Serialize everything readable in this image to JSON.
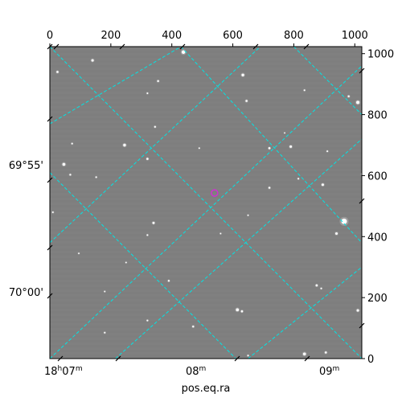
{
  "chart_data": {
    "type": "scatter",
    "title": "",
    "xlabel": "pos.eq.ra",
    "ylabel": "",
    "pixel_axes": {
      "x_range": [
        0,
        1023
      ],
      "y_range": [
        0,
        1023
      ],
      "x_ticks": [
        0,
        200,
        400,
        600,
        800,
        1000
      ],
      "y_ticks": [
        0,
        200,
        400,
        600,
        800,
        1000
      ]
    },
    "world_axes": {
      "ra_tick_labels": [
        {
          "text": "18",
          "sup1": "h",
          "mid": "07",
          "sup2": "m"
        },
        {
          "text": "",
          "sup1": "",
          "mid": "08",
          "sup2": "m"
        },
        {
          "text": "",
          "sup1": "",
          "mid": "09",
          "sup2": "m"
        }
      ],
      "dec_tick_labels": [
        "69°55'",
        "70°00'"
      ]
    },
    "grid": true,
    "grid_color": "#00e5e5",
    "background_color": "#7f7f7f",
    "marker_color": "#cc33cc",
    "target": {
      "x": 540,
      "y": 543
    },
    "grid_lines": [
      {
        "type": "ra",
        "from": [
          0,
          1023
        ],
        "to": [
          240,
          1023
        ]
      },
      {
        "type": "ra",
        "from": [
          0,
          1023
        ],
        "to": [
          150,
          1023
        ]
      },
      {
        "type": "ra",
        "from": [
          0,
          770
        ],
        "to": [
          430,
          1023
        ]
      },
      {
        "type": "ra",
        "from": [
          0,
          380
        ],
        "to": [
          690,
          1023
        ]
      },
      {
        "type": "ra",
        "from": [
          0,
          0
        ],
        "to": [
          1023,
          960
        ]
      },
      {
        "type": "ra",
        "from": [
          215,
          0
        ],
        "to": [
          1023,
          720
        ]
      },
      {
        "type": "ra",
        "from": [
          650,
          0
        ],
        "to": [
          1023,
          300
        ]
      },
      {
        "type": "dec",
        "from": [
          0,
          1023
        ],
        "to": [
          1023,
          0
        ]
      },
      {
        "type": "dec",
        "from": [
          0,
          1023
        ],
        "to": [
          0,
          1023
        ]
      },
      {
        "type": "dec",
        "from": [
          0,
          610
        ],
        "to": [
          610,
          0
        ]
      },
      {
        "type": "dec",
        "from": [
          430,
          1023
        ],
        "to": [
          1023,
          380
        ]
      },
      {
        "type": "dec",
        "from": [
          800,
          1023
        ],
        "to": [
          1023,
          800
        ]
      }
    ],
    "stars": [
      {
        "x": 438,
        "y": 1005,
        "m": 2.2
      },
      {
        "x": 140,
        "y": 978,
        "m": 1.5
      },
      {
        "x": 25,
        "y": 940,
        "m": 1.3
      },
      {
        "x": 633,
        "y": 930,
        "m": 1.7
      },
      {
        "x": 355,
        "y": 910,
        "m": 1.2
      },
      {
        "x": 320,
        "y": 870,
        "m": 1.0
      },
      {
        "x": 645,
        "y": 845,
        "m": 1.3
      },
      {
        "x": 980,
        "y": 860,
        "m": 1.2
      },
      {
        "x": 1010,
        "y": 840,
        "m": 2.0
      },
      {
        "x": 835,
        "y": 880,
        "m": 1.0
      },
      {
        "x": 345,
        "y": 760,
        "m": 1.1
      },
      {
        "x": 245,
        "y": 700,
        "m": 1.7
      },
      {
        "x": 73,
        "y": 705,
        "m": 1.0
      },
      {
        "x": 720,
        "y": 690,
        "m": 1.3
      },
      {
        "x": 790,
        "y": 695,
        "m": 1.5
      },
      {
        "x": 46,
        "y": 637,
        "m": 1.8
      },
      {
        "x": 320,
        "y": 655,
        "m": 1.3
      },
      {
        "x": 910,
        "y": 680,
        "m": 1.0
      },
      {
        "x": 152,
        "y": 595,
        "m": 1.0
      },
      {
        "x": 67,
        "y": 603,
        "m": 1.1
      },
      {
        "x": 490,
        "y": 690,
        "m": 0.9
      },
      {
        "x": 815,
        "y": 590,
        "m": 1.0
      },
      {
        "x": 895,
        "y": 570,
        "m": 1.5
      },
      {
        "x": 720,
        "y": 560,
        "m": 1.2
      },
      {
        "x": 1023,
        "y": 605,
        "m": 1.0
      },
      {
        "x": 965,
        "y": 450,
        "m": 3.5
      },
      {
        "x": 940,
        "y": 410,
        "m": 1.5
      },
      {
        "x": 340,
        "y": 445,
        "m": 1.4
      },
      {
        "x": 650,
        "y": 470,
        "m": 0.9
      },
      {
        "x": 10,
        "y": 480,
        "m": 1.0
      },
      {
        "x": 320,
        "y": 405,
        "m": 1.0
      },
      {
        "x": 390,
        "y": 255,
        "m": 1.1
      },
      {
        "x": 250,
        "y": 315,
        "m": 0.9
      },
      {
        "x": 875,
        "y": 240,
        "m": 1.3
      },
      {
        "x": 890,
        "y": 230,
        "m": 1.0
      },
      {
        "x": 615,
        "y": 160,
        "m": 1.8
      },
      {
        "x": 630,
        "y": 155,
        "m": 1.3
      },
      {
        "x": 1010,
        "y": 158,
        "m": 1.5
      },
      {
        "x": 320,
        "y": 125,
        "m": 1.0
      },
      {
        "x": 470,
        "y": 105,
        "m": 1.2
      },
      {
        "x": 180,
        "y": 85,
        "m": 1.0
      },
      {
        "x": 835,
        "y": 15,
        "m": 1.8
      },
      {
        "x": 905,
        "y": 20,
        "m": 1.3
      },
      {
        "x": 650,
        "y": 10,
        "m": 1.0
      },
      {
        "x": 180,
        "y": 220,
        "m": 0.9
      },
      {
        "x": 560,
        "y": 410,
        "m": 0.9
      },
      {
        "x": 95,
        "y": 345,
        "m": 0.9
      },
      {
        "x": 770,
        "y": 740,
        "m": 0.8
      }
    ]
  }
}
